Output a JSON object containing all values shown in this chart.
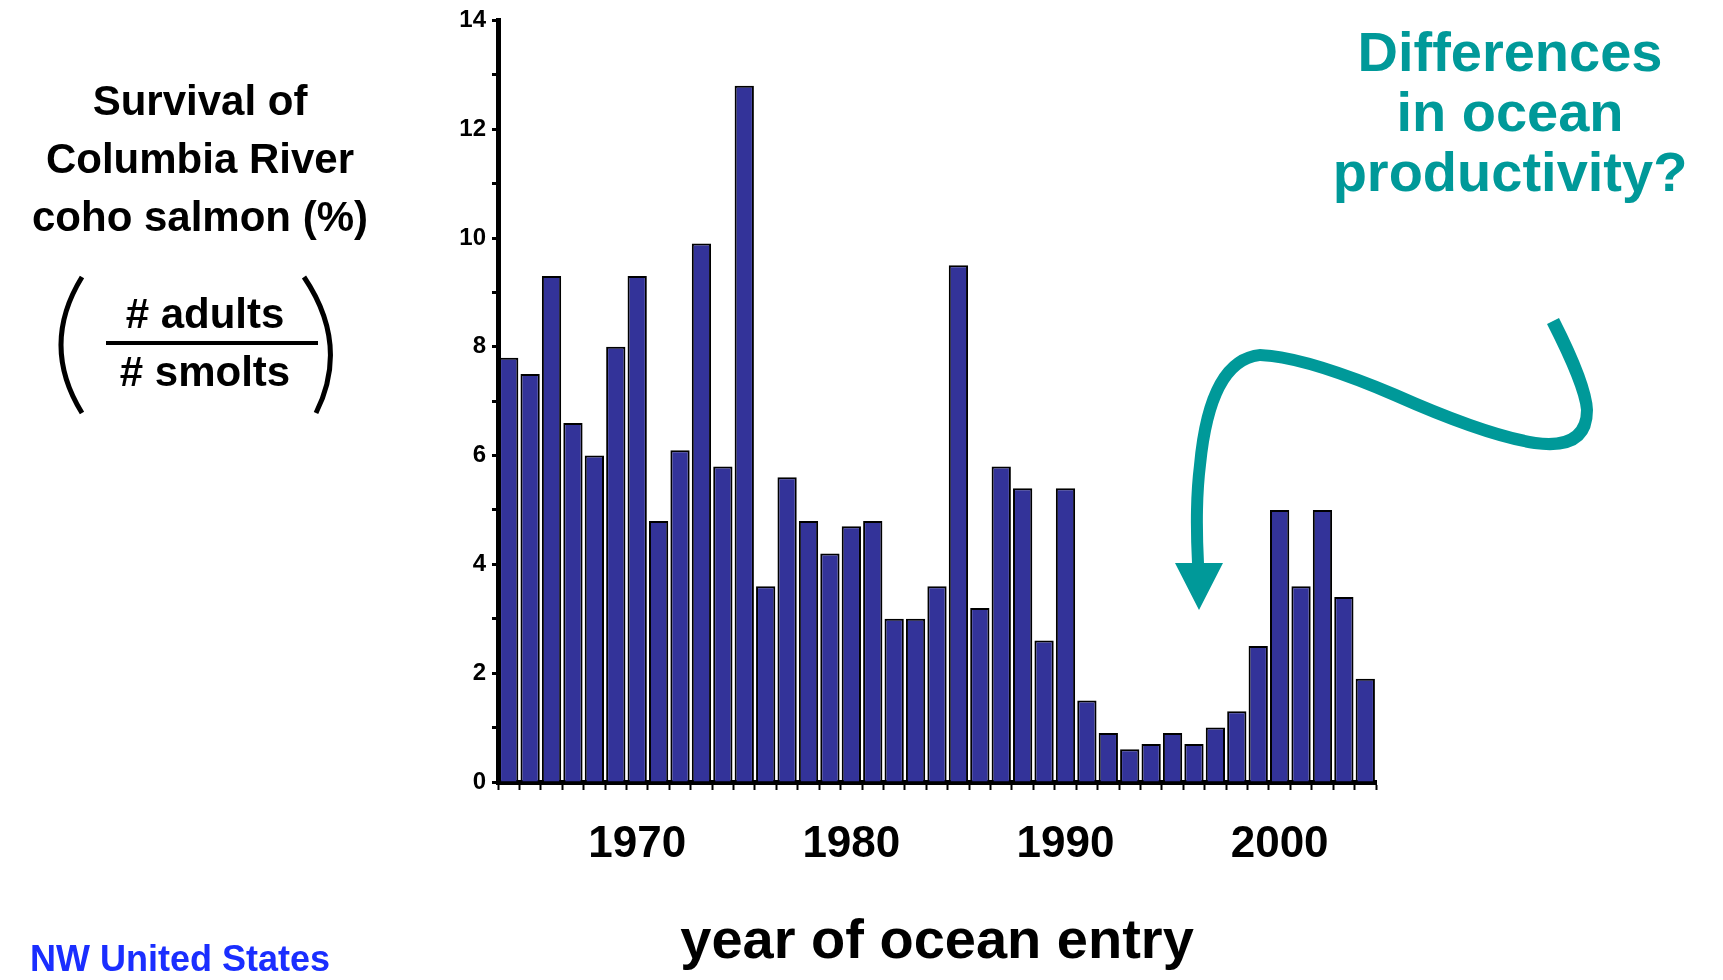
{
  "chart_data": {
    "type": "bar",
    "ylabel": "Survival of Columbia River coho salmon (%)",
    "xlabel": "year of ocean entry",
    "annotations": [
      "Differences in ocean productivity?",
      "# adults",
      "# smolts",
      "NW United States"
    ],
    "categories": [
      null,
      null,
      null,
      null,
      null,
      null,
      "1970",
      null,
      null,
      null,
      null,
      null,
      null,
      null,
      null,
      null,
      "1980",
      null,
      null,
      null,
      null,
      null,
      null,
      null,
      null,
      null,
      "1990",
      null,
      null,
      null,
      null,
      null,
      null,
      null,
      null,
      null,
      "2000",
      null,
      null,
      null,
      null
    ],
    "values": [
      7.8,
      7.5,
      9.3,
      6.6,
      6.0,
      8.0,
      9.3,
      4.8,
      6.1,
      9.9,
      5.8,
      12.8,
      3.6,
      5.6,
      4.8,
      4.2,
      4.7,
      4.8,
      3.0,
      3.0,
      3.6,
      9.5,
      3.2,
      5.8,
      5.4,
      2.6,
      5.4,
      1.5,
      0.9,
      0.6,
      0.7,
      0.9,
      0.7,
      1.0,
      1.3,
      2.5,
      5.0,
      3.6,
      5.0,
      3.4,
      1.9
    ],
    "color": "#333399",
    "ylim": [
      0,
      14
    ],
    "yticks": [
      0,
      {
        "value": 1,
        "label": null
      },
      2,
      {
        "value": 3,
        "label": null
      },
      4,
      {
        "value": 5,
        "label": null
      },
      6,
      {
        "value": 7,
        "label": null
      },
      8,
      {
        "value": 9,
        "label": null
      },
      10,
      {
        "value": 11,
        "label": null
      },
      12,
      {
        "value": 13,
        "label": null
      },
      14
    ],
    "grid": false,
    "legend": false
  }
}
